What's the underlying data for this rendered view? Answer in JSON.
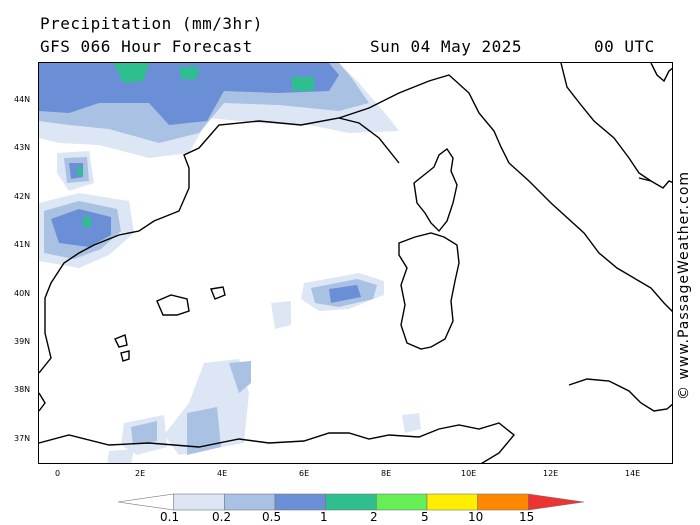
{
  "header": {
    "title": "Precipitation (mm/3hr)",
    "subtitle": "GFS 066 Hour Forecast",
    "date": "Sun 04 May 2025",
    "time": "00 UTC"
  },
  "map": {
    "lat_labels": [
      "44N",
      "43N",
      "42N",
      "41N",
      "40N",
      "39N",
      "38N",
      "37N"
    ],
    "lon_labels": [
      "0",
      "2E",
      "4E",
      "6E",
      "8E",
      "10E",
      "12E",
      "14E"
    ]
  },
  "legend": {
    "colors": [
      "#ffffff",
      "#dde6f4",
      "#a9c1e2",
      "#6b8fd6",
      "#2fbf8f",
      "#66ee55",
      "#ffee00",
      "#ff8800",
      "#ee3333"
    ],
    "labels": [
      "0.1",
      "0.2",
      "0.5",
      "1",
      "2",
      "5",
      "10",
      "15"
    ]
  },
  "credit": "© www.PassageWeather.com"
}
